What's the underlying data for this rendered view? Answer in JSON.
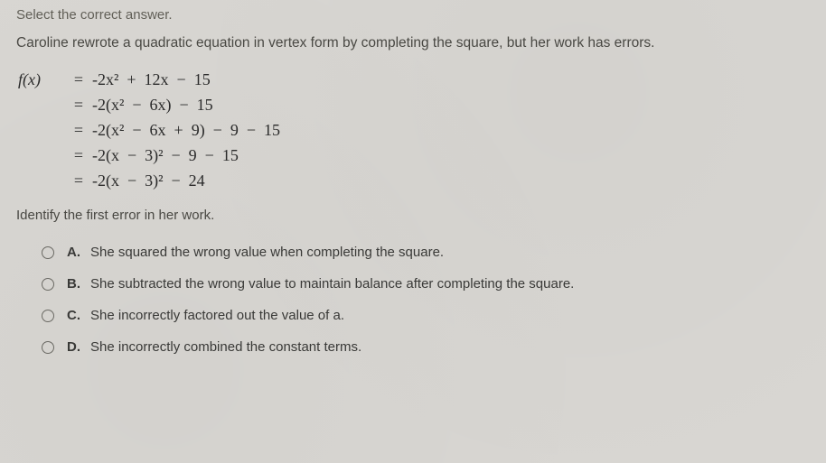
{
  "instruction": "Select the correct answer.",
  "prompt": "Caroline rewrote a quadratic equation in vertex form by completing the square, but her work has errors.",
  "equation": {
    "lhs": "f(x)",
    "rows": [
      "-2x²  +  12x  −  15",
      "-2(x²  −  6x)  −  15",
      "-2(x²  −  6x  +  9)  −  9  −  15",
      "-2(x  −  3)²  −  9  −  15",
      "-2(x  −  3)²  −  24"
    ]
  },
  "identify": "Identify the first error in her work.",
  "options": [
    {
      "letter": "A.",
      "text": "She squared the wrong value when completing the square."
    },
    {
      "letter": "B.",
      "text": "She subtracted the wrong value to maintain balance after completing the square."
    },
    {
      "letter": "C.",
      "text": "She incorrectly factored out the value of a."
    },
    {
      "letter": "D.",
      "text": "She incorrectly combined the constant terms."
    }
  ],
  "colors": {
    "background": "#d8d6d2",
    "text_muted": "#626058",
    "text_body": "#4a4944",
    "text_math": "#2b2b2b",
    "radio_border": "#6b6a64"
  },
  "typography": {
    "body_font": "Arial",
    "math_font": "Times New Roman",
    "body_size_pt": 11,
    "math_size_pt": 13
  }
}
